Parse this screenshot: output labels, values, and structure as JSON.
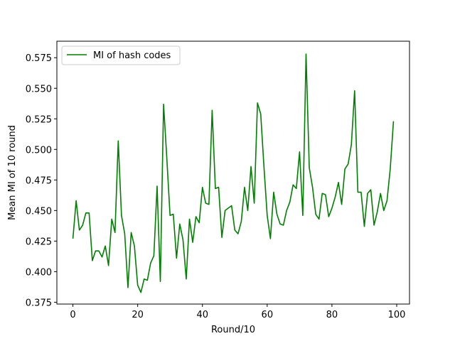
{
  "chart_data": {
    "type": "line",
    "title": "",
    "xlabel": "Round/10",
    "ylabel": "Mean MI of 10 round",
    "xlim": [
      -4.95,
      103.95
    ],
    "ylim": [
      0.3735,
      0.5885
    ],
    "xticks": [
      0,
      20,
      40,
      60,
      80,
      100
    ],
    "yticks": [
      0.375,
      0.4,
      0.425,
      0.45,
      0.475,
      0.5,
      0.525,
      0.55,
      0.575
    ],
    "ytick_labels": [
      "0.375",
      "0.400",
      "0.425",
      "0.450",
      "0.475",
      "0.500",
      "0.525",
      "0.550",
      "0.575"
    ],
    "grid": false,
    "legend": "top-left",
    "colors": {
      "series": "#008000"
    },
    "series": [
      {
        "name": "MI of hash codes",
        "x": [
          0,
          1,
          2,
          3,
          4,
          5,
          6,
          7,
          8,
          9,
          10,
          11,
          12,
          13,
          14,
          15,
          16,
          17,
          18,
          19,
          20,
          21,
          22,
          23,
          24,
          25,
          26,
          27,
          28,
          29,
          30,
          31,
          32,
          33,
          34,
          35,
          36,
          37,
          38,
          39,
          40,
          41,
          42,
          43,
          44,
          45,
          46,
          47,
          48,
          49,
          50,
          51,
          52,
          53,
          54,
          55,
          56,
          57,
          58,
          59,
          60,
          61,
          62,
          63,
          64,
          65,
          66,
          67,
          68,
          69,
          70,
          71,
          72,
          73,
          74,
          75,
          76,
          77,
          78,
          79,
          80,
          81,
          82,
          83,
          84,
          85,
          86,
          87,
          88,
          89,
          90,
          91,
          92,
          93,
          94,
          95,
          96,
          97,
          98,
          99
        ],
        "values": [
          0.427,
          0.458,
          0.434,
          0.438,
          0.448,
          0.448,
          0.409,
          0.417,
          0.417,
          0.412,
          0.421,
          0.405,
          0.443,
          0.432,
          0.507,
          0.446,
          0.431,
          0.387,
          0.432,
          0.421,
          0.389,
          0.383,
          0.394,
          0.393,
          0.407,
          0.413,
          0.47,
          0.392,
          0.537,
          0.493,
          0.446,
          0.447,
          0.411,
          0.439,
          0.426,
          0.394,
          0.443,
          0.424,
          0.445,
          0.44,
          0.469,
          0.456,
          0.455,
          0.532,
          0.468,
          0.469,
          0.428,
          0.45,
          0.452,
          0.454,
          0.434,
          0.431,
          0.441,
          0.469,
          0.45,
          0.486,
          0.456,
          0.538,
          0.529,
          0.486,
          0.446,
          0.427,
          0.465,
          0.447,
          0.439,
          0.438,
          0.45,
          0.457,
          0.471,
          0.468,
          0.498,
          0.446,
          0.578,
          0.485,
          0.469,
          0.447,
          0.443,
          0.464,
          0.463,
          0.445,
          0.452,
          0.461,
          0.473,
          0.455,
          0.484,
          0.488,
          0.504,
          0.548,
          0.465,
          0.465,
          0.437,
          0.464,
          0.467,
          0.438,
          0.449,
          0.464,
          0.45,
          0.458,
          0.484,
          0.523
        ]
      }
    ]
  }
}
